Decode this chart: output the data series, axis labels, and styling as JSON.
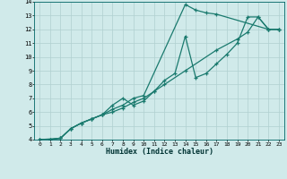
{
  "xlabel": "Humidex (Indice chaleur)",
  "line_color": "#1a7a6e",
  "bg_color": "#d0eaea",
  "grid_color": "#b0d0d0",
  "xlim": [
    -0.5,
    23.5
  ],
  "ylim": [
    4,
    14
  ],
  "xticks": [
    0,
    1,
    2,
    3,
    4,
    5,
    6,
    7,
    8,
    9,
    10,
    11,
    12,
    13,
    14,
    15,
    16,
    17,
    18,
    19,
    20,
    21,
    22,
    23
  ],
  "yticks": [
    4,
    5,
    6,
    7,
    8,
    9,
    10,
    11,
    12,
    13,
    14
  ],
  "line1": {
    "x": [
      0,
      1,
      2,
      3,
      4,
      5,
      6,
      7,
      8,
      9,
      10,
      14,
      15,
      16,
      17,
      22,
      23
    ],
    "y": [
      4,
      4,
      4.1,
      4.8,
      5.2,
      5.5,
      5.8,
      6.2,
      6.5,
      7.0,
      7.2,
      13.8,
      13.4,
      13.2,
      13.1,
      12.0,
      12.0
    ]
  },
  "line2": {
    "x": [
      0,
      1,
      2,
      3,
      4,
      5,
      6,
      7,
      8,
      9,
      10,
      11,
      12,
      13,
      14,
      15,
      16,
      17,
      18,
      19,
      20,
      21,
      22,
      23
    ],
    "y": [
      4,
      4,
      4.1,
      4.8,
      5.2,
      5.5,
      5.8,
      6.5,
      7.0,
      6.5,
      6.8,
      7.5,
      8.3,
      8.8,
      11.5,
      8.5,
      8.8,
      9.5,
      10.2,
      11.0,
      12.9,
      12.9,
      12.0,
      12.0
    ]
  },
  "line3": {
    "x": [
      0,
      2,
      3,
      4,
      5,
      6,
      7,
      8,
      9,
      10,
      11,
      12,
      14,
      17,
      19,
      20,
      21,
      22,
      23
    ],
    "y": [
      4,
      4.1,
      4.8,
      5.2,
      5.5,
      5.8,
      6.0,
      6.3,
      6.7,
      7.0,
      7.5,
      8.0,
      9.0,
      10.5,
      11.3,
      11.8,
      12.9,
      12.0,
      12.0
    ]
  }
}
